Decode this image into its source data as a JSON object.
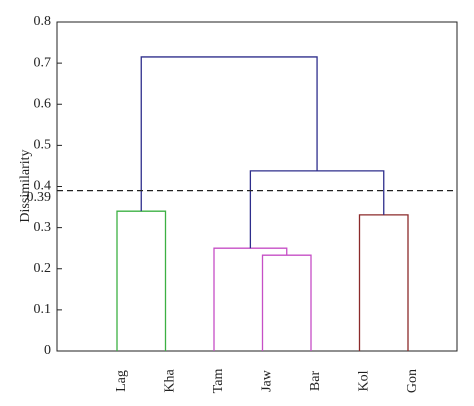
{
  "chart_data": {
    "type": "dendrogram",
    "y_label": "Dissimilarity",
    "ylim": [
      0,
      0.8
    ],
    "yticks": [
      0,
      0.1,
      0.2,
      0.3,
      0.4,
      0.5,
      0.6,
      0.7,
      0.8
    ],
    "threshold": 0.39,
    "threshold_color": "#222222",
    "tree": {
      "height": 0.715,
      "color": "#2e2e8c",
      "children": [
        {
          "height": 0.34,
          "color": "#3cb043",
          "children": [
            {
              "label": "Lag"
            },
            {
              "label": "Kha"
            }
          ]
        },
        {
          "height": 0.438,
          "color": "#2e2e8c",
          "children": [
            {
              "height": 0.25,
              "color": "#c64fc6",
              "children": [
                {
                  "label": "Tam"
                },
                {
                  "height": 0.233,
                  "color": "#c64fc6",
                  "children": [
                    {
                      "label": "Jaw"
                    },
                    {
                      "label": "Bar"
                    }
                  ]
                }
              ]
            },
            {
              "height": 0.331,
              "color": "#8b2a2a",
              "children": [
                {
                  "label": "Kol"
                },
                {
                  "label": "Gon"
                }
              ]
            }
          ]
        }
      ]
    }
  }
}
